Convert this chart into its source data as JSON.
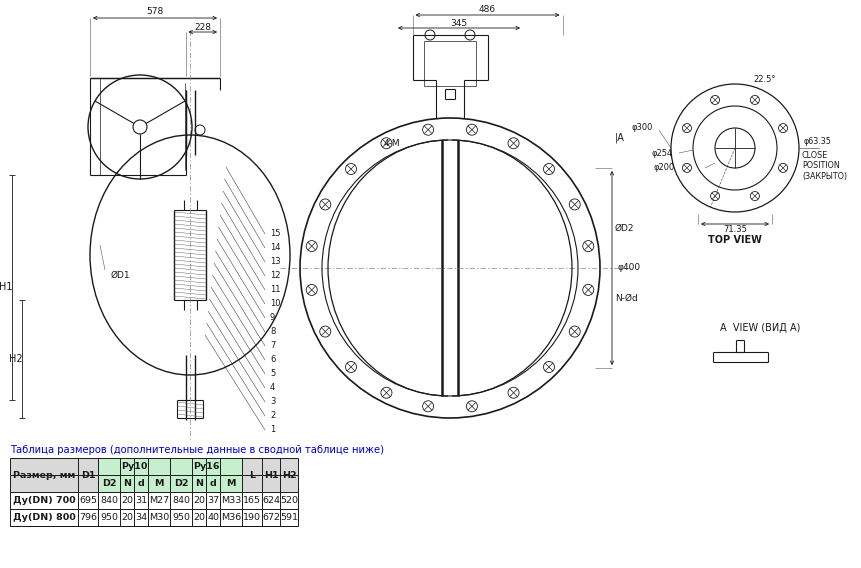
{
  "bg_color": "#ffffff",
  "table_title": "Таблица размеров (дополнительные данные в сводной таблице ниже)",
  "table_title_color": "#0000cc",
  "data_rows": [
    [
      "Ду(DN) 700",
      "695",
      "840",
      "20",
      "31",
      "M27",
      "840",
      "20",
      "37",
      "M33",
      "165",
      "624",
      "520"
    ],
    [
      "Ду(DN) 800",
      "796",
      "950",
      "20",
      "34",
      "M30",
      "950",
      "20",
      "40",
      "M36",
      "190",
      "672",
      "591"
    ]
  ],
  "pu10_color": "#c6efce",
  "pu16_color": "#c6efce",
  "header_bg": "#d9d9d9",
  "dim_578": "578",
  "dim_228": "228",
  "dim_486": "486",
  "dim_345": "345",
  "dim_400": "φ400",
  "dim_300": "φ300",
  "dim_254": "φ254",
  "dim_200": "φ200",
  "dim_6335": "φ63.35",
  "dim_7135": "71.35",
  "dim_225": "22.5°",
  "top_view_label": "TOP VIEW",
  "a_view_label": "A  VIEW (ВИД А)",
  "close_label1": "CLOSE",
  "close_label2": "POSITION",
  "close_label3": "(ЗАКРЫТО)",
  "h1_label": "H1",
  "h2_label": "H2",
  "d1_label": "ØD1",
  "d2_label": "ØD2",
  "nd_label": "N-Ød",
  "ia_label": "|A",
  "4m_label": "4-M"
}
